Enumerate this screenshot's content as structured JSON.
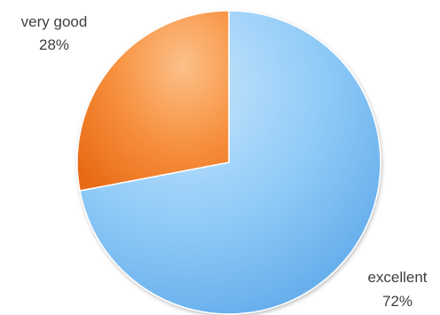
{
  "chart_data": {
    "type": "pie",
    "title": "",
    "slices": [
      {
        "label": "excellent",
        "value": 72,
        "value_label": "72%",
        "color": "#7fc2f5"
      },
      {
        "label": "very good",
        "value": 28,
        "value_label": "28%",
        "color": "#f7883a"
      }
    ],
    "start_angle_deg": 0,
    "direction": "clockwise",
    "legend": "none",
    "data_labels": "outside"
  }
}
